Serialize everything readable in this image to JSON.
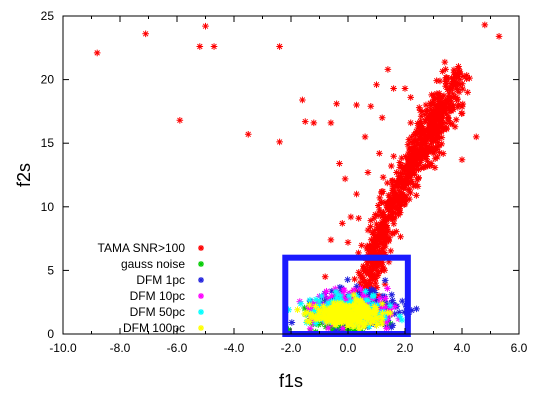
{
  "chart_data": {
    "type": "scatter",
    "xlabel": "f1s",
    "ylabel": "f2s",
    "xlim": [
      -10,
      6
    ],
    "ylim": [
      0,
      25
    ],
    "x_ticks": [
      "-10.0",
      "-8.0",
      "-6.0",
      "-4.0",
      "-2.0",
      "0.0",
      "2.0",
      "4.0",
      "6.0"
    ],
    "y_ticks": [
      "0",
      "5",
      "10",
      "15",
      "20",
      "25"
    ],
    "legend_position": "bottom-left",
    "grid": false,
    "box": {
      "x": [
        -2.2,
        2.1
      ],
      "y": [
        0,
        6.0
      ],
      "color": "#1a1aff"
    },
    "series": [
      {
        "name": "TAMA SNR>100",
        "color": "#ff0000"
      },
      {
        "name": "gauss noise",
        "color": "#00cc00"
      },
      {
        "name": "DFM 1pc",
        "color": "#2222dd"
      },
      {
        "name": "DFM 10pc",
        "color": "#ff00ff"
      },
      {
        "name": "DFM 50pc",
        "color": "#00ffff"
      },
      {
        "name": "DFM 100pc",
        "color": "#ffff00"
      }
    ],
    "tama_outliers": [
      [
        -8.8,
        22.1
      ],
      [
        -7.1,
        23.6
      ],
      [
        -5.2,
        22.6
      ],
      [
        -5.0,
        24.2
      ],
      [
        -4.7,
        22.6
      ],
      [
        -2.4,
        22.6
      ],
      [
        -5.9,
        16.8
      ],
      [
        -3.5,
        15.7
      ],
      [
        -2.4,
        15.1
      ],
      [
        -1.6,
        18.4
      ],
      [
        -1.5,
        16.7
      ],
      [
        -1.2,
        16.6
      ],
      [
        -0.6,
        16.6
      ],
      [
        -0.4,
        18.1
      ],
      [
        0.3,
        18.0
      ],
      [
        4.8,
        24.3
      ],
      [
        5.3,
        23.4
      ],
      [
        0.8,
        17.9
      ],
      [
        1.2,
        17.0
      ],
      [
        1.0,
        19.6
      ],
      [
        1.4,
        20.8
      ],
      [
        1.6,
        19.3
      ],
      [
        0.6,
        15.5
      ],
      [
        -0.1,
        12.2
      ],
      [
        0.3,
        11.0
      ],
      [
        -0.8,
        4.5
      ],
      [
        -0.6,
        7.4
      ],
      [
        4.5,
        15.5
      ],
      [
        4.0,
        13.7
      ],
      [
        2.0,
        19.3
      ],
      [
        2.5,
        17.8
      ],
      [
        0.1,
        9.2
      ],
      [
        -0.3,
        13.4
      ],
      [
        1.1,
        14.2
      ],
      [
        0.7,
        12.7
      ],
      [
        4.2,
        19.0
      ],
      [
        3.8,
        20.2
      ],
      [
        2.2,
        18.6
      ],
      [
        0.0,
        7.2
      ],
      [
        -0.2,
        8.7
      ]
    ],
    "tama_band": {
      "x0": 0.5,
      "y0": 2.0,
      "x1": 3.3,
      "y1": 18.0,
      "curve": 0.35,
      "spread": 0.45,
      "count": 700
    },
    "tama_cluster": {
      "x0": 2.6,
      "y0": 13.5,
      "x1": 3.9,
      "y1": 20.7,
      "spread": 0.5,
      "count": 220
    },
    "noise_cloud": {
      "cx": 0.0,
      "cy": 1.5,
      "sx": 0.65,
      "sy": 0.55,
      "count": 260
    },
    "dfm_clouds": [
      {
        "series": 2,
        "cx": 0.25,
        "cy": 1.9,
        "sx": 0.75,
        "sy": 0.9,
        "count": 260
      },
      {
        "series": 3,
        "cx": 0.1,
        "cy": 1.7,
        "sx": 0.7,
        "sy": 0.75,
        "count": 260
      },
      {
        "series": 4,
        "cx": 0.0,
        "cy": 1.6,
        "sx": 0.65,
        "sy": 0.65,
        "count": 260
      },
      {
        "series": 5,
        "cx": -0.05,
        "cy": 1.4,
        "sx": 0.6,
        "sy": 0.55,
        "count": 320
      }
    ]
  }
}
